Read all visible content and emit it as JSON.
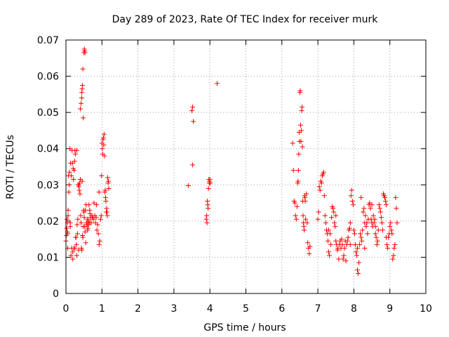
{
  "chart_data": {
    "type": "scatter",
    "title": "Day 289 of 2023, Rate Of TEC Index for receiver murk",
    "xlabel": "GPS time / hours",
    "ylabel": "ROTI / TECUs",
    "xlim": [
      0,
      10
    ],
    "ylim": [
      0,
      0.07
    ],
    "x_ticks": [
      "0",
      "1",
      "2",
      "3",
      "4",
      "5",
      "6",
      "7",
      "8",
      "9",
      "10"
    ],
    "y_ticks": [
      "0",
      "0.01",
      "0.02",
      "0.03",
      "0.04",
      "0.05",
      "0.06",
      "0.07"
    ],
    "grid": true,
    "marker": "plus",
    "color": "#ff0000",
    "series": [
      {
        "points": [
          [
            0.0,
            0.0145
          ],
          [
            0.01,
            0.016
          ],
          [
            0.02,
            0.018
          ],
          [
            0.03,
            0.0205
          ],
          [
            0.04,
            0.0195
          ],
          [
            0.04,
            0.017
          ],
          [
            0.05,
            0.0125
          ],
          [
            0.06,
            0.0215
          ],
          [
            0.06,
            0.023
          ],
          [
            0.07,
            0.0325
          ],
          [
            0.08,
            0.028
          ],
          [
            0.09,
            0.03
          ],
          [
            0.1,
            0.0335
          ],
          [
            0.11,
            0.04
          ],
          [
            0.12,
            0.0195
          ],
          [
            0.12,
            0.0185
          ],
          [
            0.13,
            0.036
          ],
          [
            0.14,
            0.0105
          ],
          [
            0.15,
            0.0325
          ],
          [
            0.16,
            0.0125
          ],
          [
            0.17,
            0.0395
          ],
          [
            0.18,
            0.036
          ],
          [
            0.19,
            0.0115
          ],
          [
            0.19,
            0.0095
          ],
          [
            0.2,
            0.0345
          ],
          [
            0.21,
            0.0315
          ],
          [
            0.22,
            0.0125
          ],
          [
            0.23,
            0.034
          ],
          [
            0.24,
            0.0365
          ],
          [
            0.25,
            0.0395
          ],
          [
            0.26,
            0.0385
          ],
          [
            0.27,
            0.0155
          ],
          [
            0.28,
            0.0155
          ],
          [
            0.29,
            0.0135
          ],
          [
            0.3,
            0.0395
          ],
          [
            0.31,
            0.019
          ],
          [
            0.32,
            0.0165
          ],
          [
            0.33,
            0.0205
          ],
          [
            0.34,
            0.03
          ],
          [
            0.35,
            0.03
          ],
          [
            0.36,
            0.0295
          ],
          [
            0.37,
            0.0285
          ],
          [
            0.38,
            0.0305
          ],
          [
            0.39,
            0.0275
          ],
          [
            0.4,
            0.0315
          ],
          [
            0.41,
            0.0215
          ],
          [
            0.42,
            0.0195
          ],
          [
            0.43,
            0.0125
          ],
          [
            0.44,
            0.012
          ],
          [
            0.45,
            0.031
          ],
          [
            0.46,
            0.016
          ],
          [
            0.47,
            0.0155
          ],
          [
            0.48,
            0.0185
          ],
          [
            0.49,
            0.023
          ],
          [
            0.5,
            0.0225
          ],
          [
            0.51,
            0.021
          ],
          [
            0.52,
            0.0185
          ],
          [
            0.53,
            0.017
          ],
          [
            0.54,
            0.023
          ],
          [
            0.55,
            0.014
          ],
          [
            0.56,
            0.0245
          ],
          [
            0.57,
            0.0195
          ],
          [
            0.58,
            0.019
          ],
          [
            0.59,
            0.019
          ],
          [
            0.6,
            0.0205
          ],
          [
            0.61,
            0.018
          ],
          [
            0.62,
            0.02
          ],
          [
            0.63,
            0.019
          ],
          [
            0.64,
            0.0245
          ],
          [
            0.65,
            0.0195
          ],
          [
            0.66,
            0.023
          ],
          [
            0.67,
            0.022
          ],
          [
            0.68,
            0.021
          ],
          [
            0.7,
            0.0195
          ],
          [
            0.72,
            0.0215
          ],
          [
            0.74,
            0.021
          ],
          [
            0.76,
            0.0205
          ],
          [
            0.78,
            0.025
          ],
          [
            0.8,
            0.0215
          ],
          [
            0.82,
            0.0195
          ],
          [
            0.84,
            0.021
          ],
          [
            0.86,
            0.0175
          ],
          [
            0.88,
            0.019
          ],
          [
            0.9,
            0.0165
          ],
          [
            0.92,
            0.0135
          ],
          [
            0.94,
            0.0145
          ],
          [
            0.96,
            0.0205
          ],
          [
            0.98,
            0.0215
          ],
          [
            0.4,
            0.051
          ],
          [
            0.42,
            0.0525
          ],
          [
            0.44,
            0.0555
          ],
          [
            0.45,
            0.0565
          ],
          [
            0.46,
            0.0575
          ],
          [
            0.48,
            0.0485
          ],
          [
            0.5,
            0.0665
          ],
          [
            0.51,
            0.0675
          ],
          [
            0.52,
            0.067
          ],
          [
            0.53,
            0.0665
          ],
          [
            0.47,
            0.062
          ],
          [
            0.44,
            0.054
          ],
          [
            0.99,
            0.0325
          ],
          [
            1.0,
            0.0415
          ],
          [
            1.01,
            0.04
          ],
          [
            1.02,
            0.0385
          ],
          [
            1.03,
            0.0425
          ],
          [
            1.04,
            0.043
          ],
          [
            1.05,
            0.041
          ],
          [
            1.06,
            0.044
          ],
          [
            1.07,
            0.038
          ],
          [
            1.08,
            0.028
          ],
          [
            1.09,
            0.0285
          ],
          [
            1.1,
            0.0265
          ],
          [
            1.11,
            0.0255
          ],
          [
            1.12,
            0.0225
          ],
          [
            1.13,
            0.0235
          ],
          [
            1.14,
            0.0225
          ],
          [
            1.15,
            0.0215
          ],
          [
            1.16,
            0.032
          ],
          [
            1.17,
            0.0305
          ],
          [
            1.18,
            0.031
          ],
          [
            1.19,
            0.029
          ],
          [
            0.6,
            0.0175
          ],
          [
            0.85,
            0.0245
          ],
          [
            0.92,
            0.028
          ],
          [
            0.05,
            0.0165
          ],
          [
            0.3,
            0.0105
          ],
          [
            0.25,
            0.0125
          ],
          [
            0.35,
            0.012
          ],
          [
            3.4,
            0.0298
          ],
          [
            3.5,
            0.0505
          ],
          [
            3.52,
            0.0515
          ],
          [
            3.54,
            0.0475
          ],
          [
            3.52,
            0.0355
          ],
          [
            4.2,
            0.058
          ],
          [
            3.9,
            0.0205
          ],
          [
            3.91,
            0.0215
          ],
          [
            3.92,
            0.0195
          ],
          [
            3.93,
            0.0255
          ],
          [
            3.94,
            0.0245
          ],
          [
            3.95,
            0.0235
          ],
          [
            3.96,
            0.029
          ],
          [
            3.97,
            0.0315
          ],
          [
            3.98,
            0.0305
          ],
          [
            3.99,
            0.031
          ],
          [
            4.0,
            0.0315
          ],
          [
            4.01,
            0.0305
          ],
          [
            6.3,
            0.0415
          ],
          [
            6.32,
            0.034
          ],
          [
            6.34,
            0.0255
          ],
          [
            6.36,
            0.025
          ],
          [
            6.38,
            0.0215
          ],
          [
            6.4,
            0.0205
          ],
          [
            6.42,
            0.024
          ],
          [
            6.44,
            0.0305
          ],
          [
            6.45,
            0.031
          ],
          [
            6.46,
            0.034
          ],
          [
            6.47,
            0.0385
          ],
          [
            6.48,
            0.0445
          ],
          [
            6.49,
            0.042
          ],
          [
            6.5,
            0.0555
          ],
          [
            6.51,
            0.056
          ],
          [
            6.52,
            0.0465
          ],
          [
            6.53,
            0.042
          ],
          [
            6.54,
            0.045
          ],
          [
            6.55,
            0.0505
          ],
          [
            6.56,
            0.0515
          ],
          [
            6.57,
            0.0405
          ],
          [
            6.58,
            0.0255
          ],
          [
            6.59,
            0.0215
          ],
          [
            6.6,
            0.0195
          ],
          [
            6.61,
            0.0185
          ],
          [
            6.62,
            0.0175
          ],
          [
            6.63,
            0.027
          ],
          [
            6.64,
            0.0265
          ],
          [
            6.65,
            0.0255
          ],
          [
            6.66,
            0.0205
          ],
          [
            6.68,
            0.0275
          ],
          [
            6.7,
            0.0195
          ],
          [
            6.72,
            0.014
          ],
          [
            6.74,
            0.0125
          ],
          [
            6.76,
            0.011
          ],
          [
            6.78,
            0.013
          ],
          [
            7.0,
            0.0205
          ],
          [
            7.02,
            0.0225
          ],
          [
            7.04,
            0.0295
          ],
          [
            7.06,
            0.0285
          ],
          [
            7.08,
            0.031
          ],
          [
            7.1,
            0.0305
          ],
          [
            7.12,
            0.0325
          ],
          [
            7.14,
            0.033
          ],
          [
            7.16,
            0.0335
          ],
          [
            7.18,
            0.027
          ],
          [
            7.2,
            0.0215
          ],
          [
            7.22,
            0.0195
          ],
          [
            7.24,
            0.0175
          ],
          [
            7.26,
            0.0165
          ],
          [
            7.28,
            0.0145
          ],
          [
            7.3,
            0.0115
          ],
          [
            7.32,
            0.0105
          ],
          [
            7.34,
            0.0165
          ],
          [
            7.36,
            0.0135
          ],
          [
            7.38,
            0.021
          ],
          [
            7.4,
            0.024
          ],
          [
            7.42,
            0.0235
          ],
          [
            7.44,
            0.0225
          ],
          [
            7.46,
            0.0195
          ],
          [
            7.48,
            0.0185
          ],
          [
            7.5,
            0.0145
          ],
          [
            7.52,
            0.0135
          ],
          [
            7.54,
            0.012
          ],
          [
            7.56,
            0.0125
          ],
          [
            7.58,
            0.0095
          ],
          [
            7.6,
            0.0135
          ],
          [
            7.62,
            0.0145
          ],
          [
            7.64,
            0.0125
          ],
          [
            7.66,
            0.015
          ],
          [
            7.68,
            0.0135
          ],
          [
            7.7,
            0.0095
          ],
          [
            7.72,
            0.0105
          ],
          [
            7.74,
            0.0125
          ],
          [
            7.76,
            0.0145
          ],
          [
            7.78,
            0.009
          ],
          [
            7.8,
            0.0135
          ],
          [
            7.82,
            0.0145
          ],
          [
            7.84,
            0.0155
          ],
          [
            7.86,
            0.0175
          ],
          [
            7.88,
            0.018
          ],
          [
            7.9,
            0.0195
          ],
          [
            7.92,
            0.027
          ],
          [
            7.94,
            0.0285
          ],
          [
            7.96,
            0.0255
          ],
          [
            7.98,
            0.0245
          ],
          [
            8.0,
            0.0175
          ],
          [
            8.02,
            0.0165
          ],
          [
            8.04,
            0.0135
          ],
          [
            8.06,
            0.0115
          ],
          [
            8.08,
            0.0105
          ],
          [
            8.1,
            0.0065
          ],
          [
            8.12,
            0.0055
          ],
          [
            8.14,
            0.0085
          ],
          [
            8.16,
            0.0135
          ],
          [
            8.18,
            0.0165
          ],
          [
            8.2,
            0.0155
          ],
          [
            8.22,
            0.0145
          ],
          [
            8.24,
            0.0175
          ],
          [
            8.26,
            0.0225
          ],
          [
            8.28,
            0.0235
          ],
          [
            8.3,
            0.0195
          ],
          [
            8.32,
            0.0215
          ],
          [
            8.34,
            0.0185
          ],
          [
            8.36,
            0.0195
          ],
          [
            8.38,
            0.0165
          ],
          [
            8.4,
            0.0205
          ],
          [
            8.42,
            0.0245
          ],
          [
            8.44,
            0.025
          ],
          [
            8.46,
            0.0235
          ],
          [
            8.48,
            0.0205
          ],
          [
            8.5,
            0.0195
          ],
          [
            8.52,
            0.0185
          ],
          [
            8.54,
            0.0215
          ],
          [
            8.56,
            0.0195
          ],
          [
            8.58,
            0.0205
          ],
          [
            8.6,
            0.0165
          ],
          [
            8.62,
            0.0155
          ],
          [
            8.64,
            0.0135
          ],
          [
            8.66,
            0.0145
          ],
          [
            8.68,
            0.0175
          ],
          [
            8.7,
            0.0245
          ],
          [
            8.72,
            0.0235
          ],
          [
            8.74,
            0.0225
          ],
          [
            8.76,
            0.021
          ],
          [
            8.78,
            0.0195
          ],
          [
            8.8,
            0.0175
          ],
          [
            8.82,
            0.0275
          ],
          [
            8.84,
            0.027
          ],
          [
            8.86,
            0.0265
          ],
          [
            8.88,
            0.0255
          ],
          [
            8.9,
            0.0245
          ],
          [
            8.92,
            0.0135
          ],
          [
            8.94,
            0.0125
          ],
          [
            8.96,
            0.0155
          ],
          [
            8.98,
            0.0165
          ],
          [
            9.0,
            0.0185
          ],
          [
            9.02,
            0.0195
          ],
          [
            9.04,
            0.0175
          ],
          [
            9.06,
            0.0165
          ],
          [
            9.08,
            0.0095
          ],
          [
            9.1,
            0.0105
          ],
          [
            9.12,
            0.0125
          ],
          [
            9.14,
            0.0135
          ],
          [
            9.16,
            0.0265
          ],
          [
            9.18,
            0.0235
          ],
          [
            9.2,
            0.0195
          ],
          [
            8.1,
            0.0125
          ],
          [
            8.2,
            0.0265
          ],
          [
            8.5,
            0.0245
          ],
          [
            7.9,
            0.0135
          ],
          [
            7.3,
            0.0175
          ],
          [
            8.3,
            0.0125
          ],
          [
            7.5,
            0.0215
          ],
          [
            8.6,
            0.0185
          ],
          [
            8.9,
            0.0155
          ]
        ]
      }
    ]
  }
}
